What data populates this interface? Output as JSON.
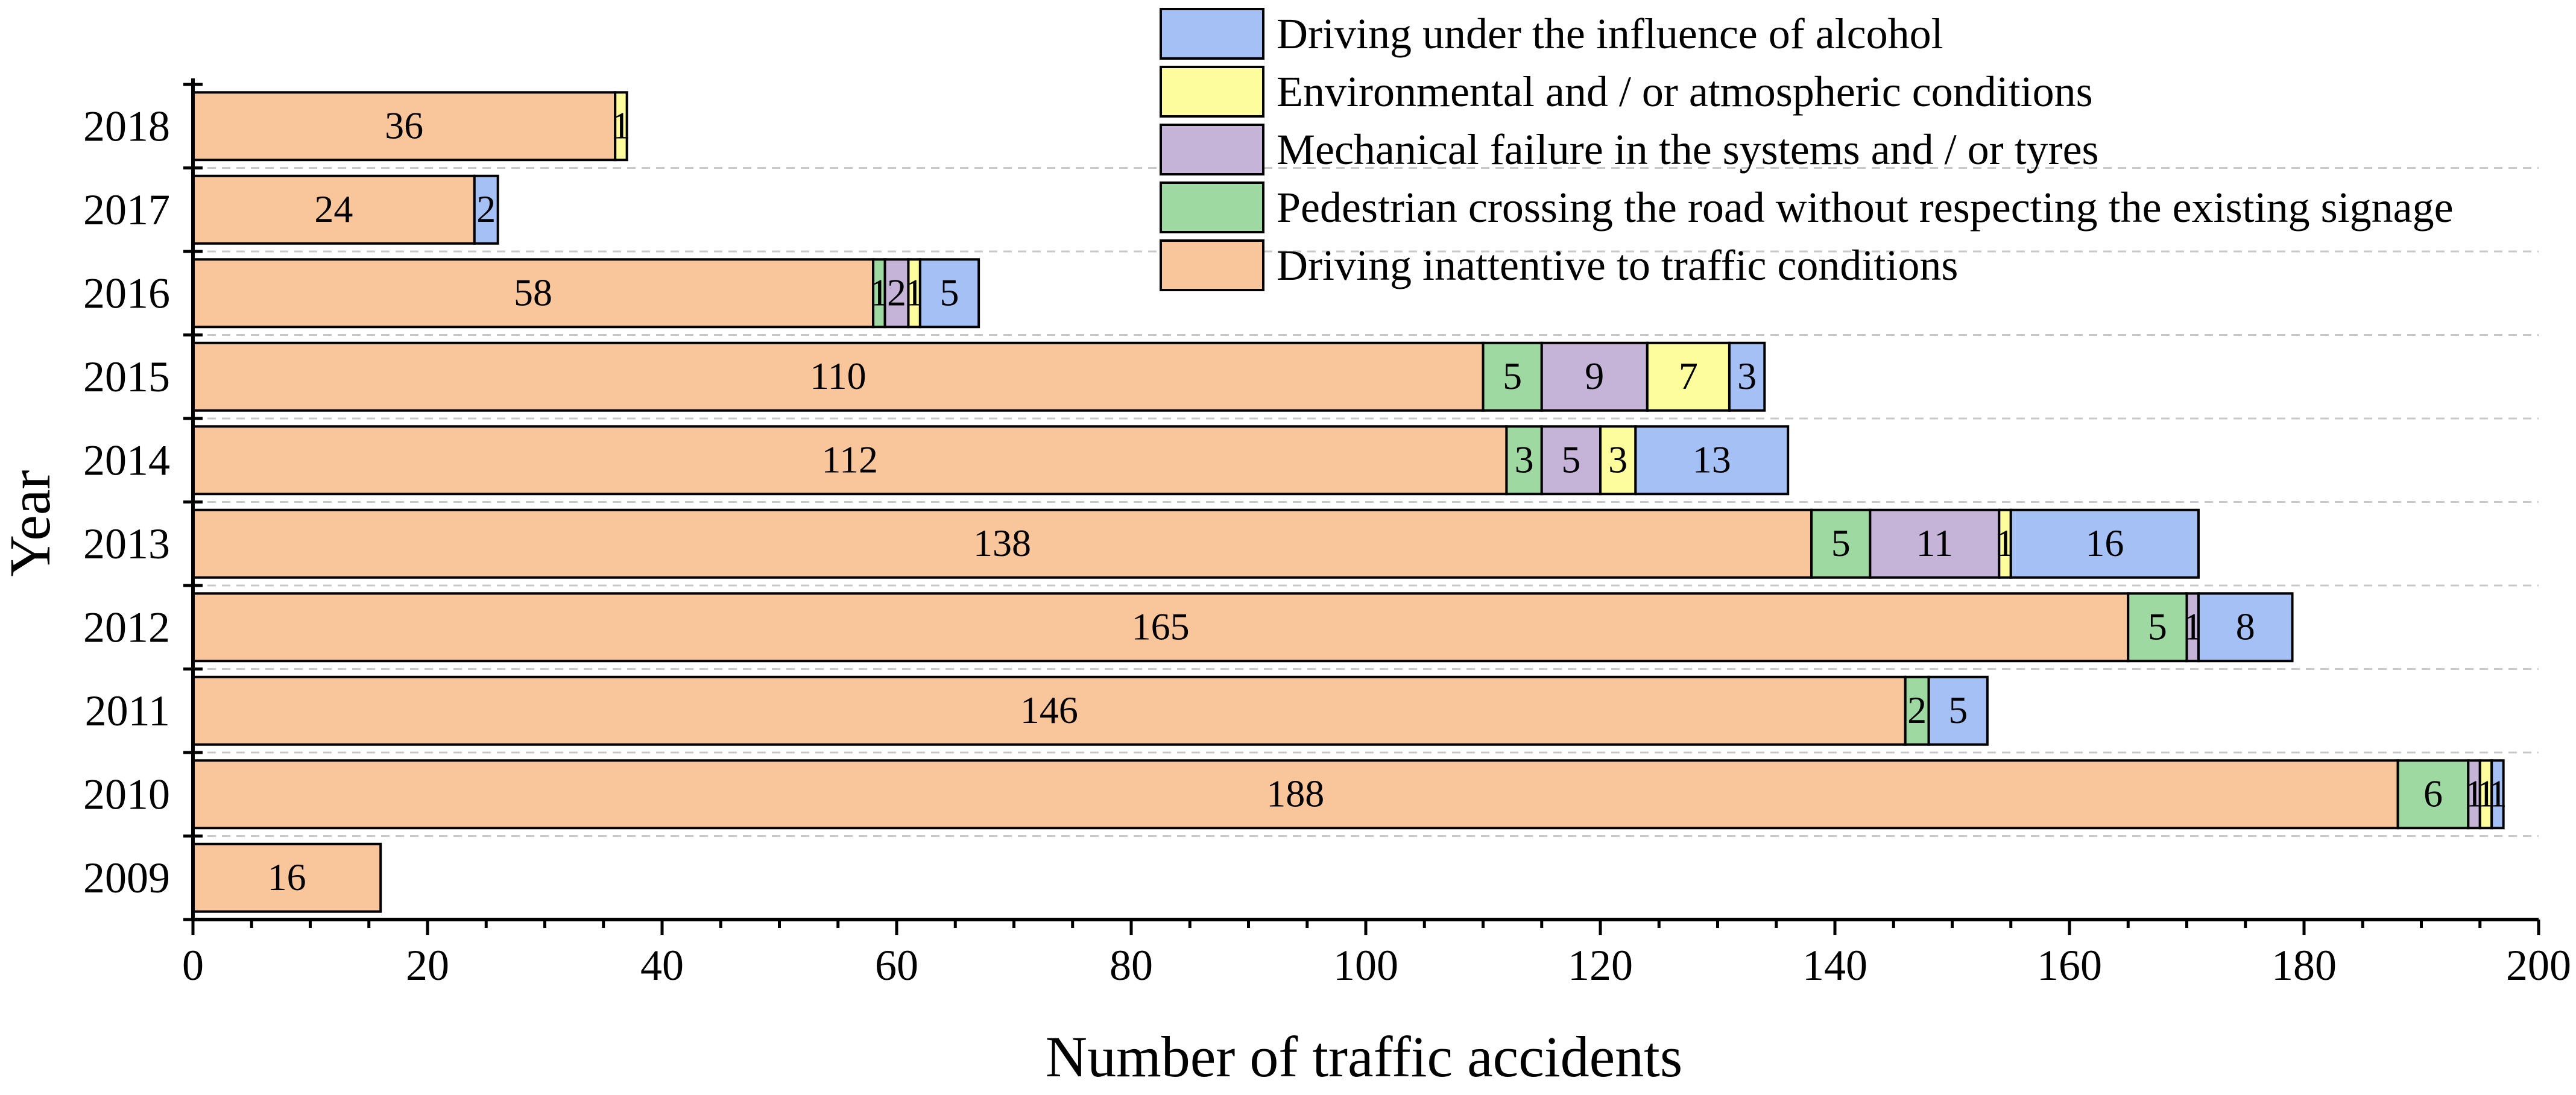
{
  "chart_data": {
    "type": "bar",
    "orientation": "horizontal",
    "stacked": true,
    "title": "",
    "xlabel": "Number of traffic accidents",
    "ylabel": "Year",
    "xlim": [
      0,
      200
    ],
    "x_ticks": [
      0,
      20,
      40,
      60,
      80,
      100,
      120,
      140,
      160,
      180,
      200
    ],
    "grid": "horizontal dashed",
    "legend_position": "top-right",
    "categories": [
      "2018",
      "2017",
      "2016",
      "2015",
      "2014",
      "2013",
      "2012",
      "2011",
      "2010",
      "2009"
    ],
    "series": [
      {
        "name": "Driving inattentive to traffic conditions",
        "color": "#f9c59a",
        "values": [
          36,
          24,
          58,
          110,
          112,
          138,
          165,
          146,
          188,
          16
        ]
      },
      {
        "name": "Pedestrian crossing the road without respecting the existing signage",
        "color": "#9dd9a0",
        "values": [
          0,
          0,
          1,
          5,
          3,
          5,
          5,
          2,
          6,
          0
        ]
      },
      {
        "name": "Mechanical failure in the systems and / or tyres",
        "color": "#c5b3d8",
        "values": [
          0,
          0,
          2,
          9,
          5,
          11,
          1,
          0,
          1,
          0
        ]
      },
      {
        "name": "Environmental and / or atmospheric conditions",
        "color": "#fdfd9e",
        "values": [
          1,
          0,
          1,
          7,
          3,
          1,
          0,
          0,
          1,
          0
        ]
      },
      {
        "name": "Driving under the influence of alcohol",
        "color": "#a4c0f4",
        "values": [
          0,
          2,
          5,
          3,
          13,
          16,
          8,
          5,
          1,
          0
        ]
      }
    ],
    "legend_order": [
      "Driving under the influence of alcohol",
      "Environmental and / or atmospheric conditions",
      "Mechanical failure in the systems and / or tyres",
      "Pedestrian crossing the road without respecting the existing signage",
      "Driving inattentive to traffic conditions"
    ]
  }
}
